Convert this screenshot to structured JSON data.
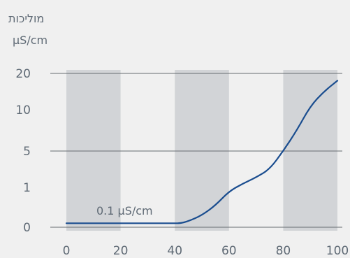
{
  "chart_data": {
    "type": "line",
    "ylabel_title": "מוליכות",
    "ylabel_unit": "µS/cm",
    "xlim": [
      0,
      100
    ],
    "x_ticks": [
      "0",
      "20",
      "40",
      "60",
      "80",
      "100"
    ],
    "y_ticks": [
      "0",
      "1",
      "5",
      "10",
      "20"
    ],
    "shaded_x_bands": [
      [
        0,
        20
      ],
      [
        40,
        60
      ],
      [
        80,
        100
      ]
    ],
    "gridlines_at_y_ticks": [
      "20",
      "5",
      "0"
    ],
    "annotation": "0.1 µS/cm",
    "series": [
      {
        "x": [
          0,
          10,
          20,
          30,
          40,
          42,
          45,
          50,
          55,
          60,
          65,
          70,
          75,
          80,
          85,
          90,
          95,
          100
        ],
        "y": [
          0.1,
          0.1,
          0.1,
          0.1,
          0.1,
          0.1,
          0.15,
          0.3,
          0.55,
          0.9,
          1.4,
          2.1,
          3.0,
          5.0,
          7.5,
          11,
          15,
          18
        ],
        "color": "#1a4d8f"
      }
    ]
  }
}
